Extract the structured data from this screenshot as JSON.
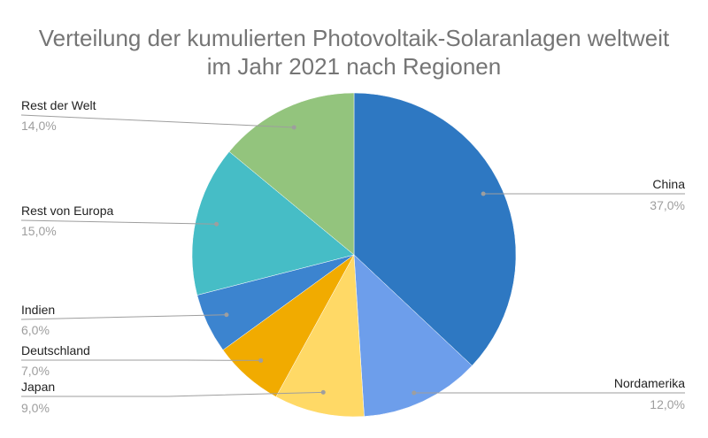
{
  "chart_data": {
    "type": "pie",
    "title": "Verteilung der kumulierten Photovoltaik-Solaranlagen weltweit im Jahr 2021 nach Regionen",
    "title_lines": [
      "Verteilung der kumulierten Photovoltaik-Solaranlagen weltweit",
      "im Jahr 2021 nach Regionen"
    ],
    "slices": [
      {
        "label": "China",
        "value": 37.0,
        "value_label": "37,0%",
        "color": "#2e78c2"
      },
      {
        "label": "Nordamerika",
        "value": 12.0,
        "value_label": "12,0%",
        "color": "#6d9eeb"
      },
      {
        "label": "Japan",
        "value": 9.0,
        "value_label": "9,0%",
        "color": "#ffd966"
      },
      {
        "label": "Deutschland",
        "value": 7.0,
        "value_label": "7,0%",
        "color": "#f1ab00"
      },
      {
        "label": "Indien",
        "value": 6.0,
        "value_label": "6,0%",
        "color": "#3c84cf"
      },
      {
        "label": "Rest von Europa",
        "value": 15.0,
        "value_label": "15,0%",
        "color": "#46bdc6"
      },
      {
        "label": "Rest der Welt",
        "value": 14.0,
        "value_label": "14,0%",
        "color": "#93c47d"
      }
    ],
    "start_angle": "12 o'clock",
    "direction": "clockwise",
    "labels": "outside with leader lines"
  }
}
